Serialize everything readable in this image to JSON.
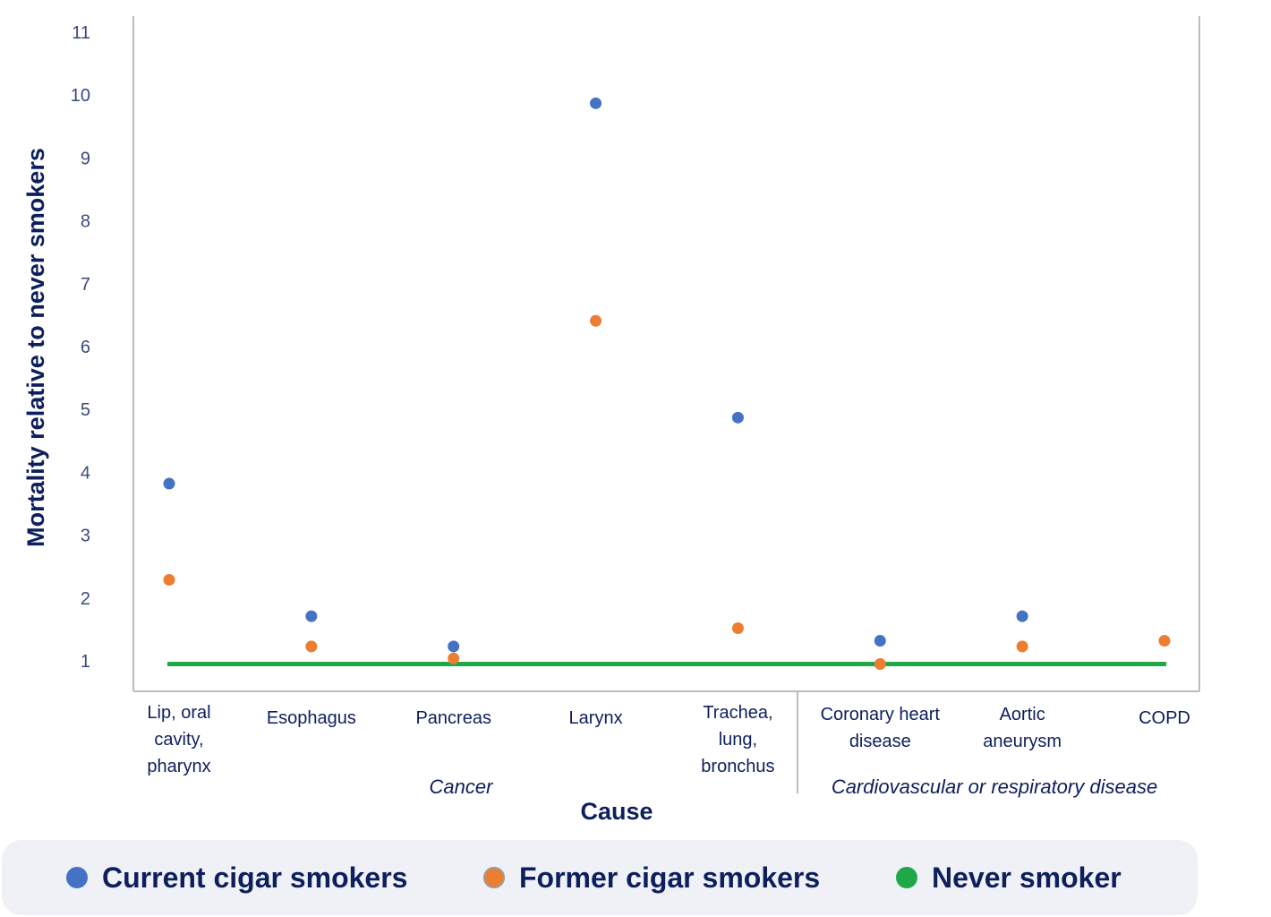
{
  "chart_data": {
    "type": "scatter",
    "title": "",
    "xlabel": "Cause",
    "ylabel": "Mortality relative to never smokers",
    "ylim": [
      0.5,
      11.3
    ],
    "y_ticks": [
      "1",
      "2",
      "3",
      "4",
      "5",
      "6",
      "7",
      "8",
      "9",
      "10",
      "11"
    ],
    "categories": [
      [
        "Lip, oral",
        "cavity,",
        "pharynx"
      ],
      [
        "Esophagus"
      ],
      [
        "Pancreas"
      ],
      [
        "Larynx"
      ],
      [
        "Trachea,",
        "lung,",
        "bronchus"
      ],
      [
        "Coronary heart",
        "disease"
      ],
      [
        "Aortic",
        "aneurysm"
      ],
      [
        "COPD"
      ]
    ],
    "groups": [
      {
        "label": "Cancer",
        "categories": [
          0,
          1,
          2,
          3,
          4
        ]
      },
      {
        "label": "Cardiovascular or respiratory disease",
        "categories": [
          5,
          6,
          7
        ]
      }
    ],
    "series": [
      {
        "name": "Current cigar smokers",
        "color": "#4472c4",
        "values": [
          3.82,
          1.71,
          1.23,
          9.87,
          4.87,
          1.32,
          1.71,
          null
        ]
      },
      {
        "name": "Former cigar smokers",
        "color": "#ed7d31",
        "values": [
          2.29,
          1.23,
          1.04,
          6.41,
          1.52,
          0.95,
          1.23,
          1.32
        ]
      }
    ],
    "reference_line": {
      "name": "Never smoker",
      "value": 0.95,
      "color": "#1fa84a"
    },
    "grid": false,
    "legend_position": "bottom"
  },
  "legend": {
    "items": [
      {
        "label": "Current cigar smokers",
        "color": "#4472c4"
      },
      {
        "label": "Former cigar smokers",
        "color": "#ed7d31"
      },
      {
        "label": "Never smoker",
        "color": "#1fa84a"
      }
    ]
  }
}
